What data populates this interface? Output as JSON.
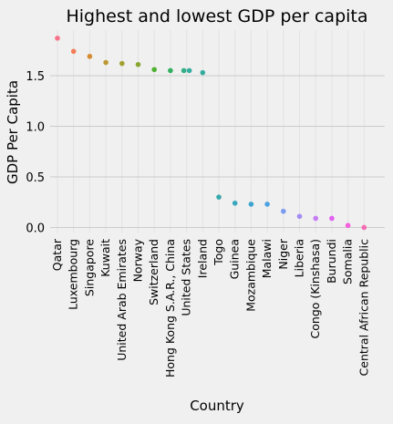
{
  "chart_data": {
    "type": "scatter",
    "title": "Highest and lowest GDP per capita",
    "xlabel": "Country",
    "ylabel": "GDP Per Capita",
    "ylim": [
      -0.05,
      1.95
    ],
    "yticks": [
      0.0,
      0.5,
      1.0,
      1.5
    ],
    "ytick_labels": [
      "0.0",
      "0.5",
      "1.0",
      "1.5"
    ],
    "grid": true,
    "legend": "none",
    "categories": [
      "Qatar",
      "Luxembourg",
      "Singapore",
      "Kuwait",
      "United Arab Emirates",
      "Norway",
      "Switzerland",
      "Hong Kong S.A.R., China",
      "United States",
      "Ireland",
      "Togo",
      "Guinea",
      "Mozambique",
      "Malawi",
      "Niger",
      "Liberia",
      "Congo (Kinshasa)",
      "Burundi",
      "Somalia",
      "Central African Republic"
    ],
    "points": [
      {
        "x": "Qatar",
        "y": 1.87,
        "color": "#f77189"
      },
      {
        "x": "Luxembourg",
        "y": 1.74,
        "color": "#f27c55"
      },
      {
        "x": "Singapore",
        "y": 1.69,
        "color": "#d58c32"
      },
      {
        "x": "Kuwait",
        "y": 1.63,
        "color": "#bb9832"
      },
      {
        "x": "United Arab Emirates",
        "y": 1.62,
        "color": "#a39f31"
      },
      {
        "x": "Norway",
        "y": 1.61,
        "color": "#89a631"
      },
      {
        "x": "Switzerland",
        "y": 1.56,
        "color": "#50b131"
      },
      {
        "x": "Hong Kong S.A.R., China",
        "y": 1.55,
        "color": "#33b05f"
      },
      {
        "x": "United States",
        "y": 1.55,
        "color": "#34ae89"
      },
      {
        "x": "United States",
        "y": 1.55,
        "color": "#35ac9e"
      },
      {
        "x": "Ireland",
        "y": 1.53,
        "color": "#36ab9f"
      },
      {
        "x": "Togo",
        "y": 0.3,
        "color": "#37a9ad"
      },
      {
        "x": "Guinea",
        "y": 0.24,
        "color": "#38a7bd"
      },
      {
        "x": "Mozambique",
        "y": 0.23,
        "color": "#3aa5d0"
      },
      {
        "x": "Malawi",
        "y": 0.23,
        "color": "#4ca1e2"
      },
      {
        "x": "Niger",
        "y": 0.16,
        "color": "#7b9bf3"
      },
      {
        "x": "Liberia",
        "y": 0.11,
        "color": "#a48cf4"
      },
      {
        "x": "Congo (Kinshasa)",
        "y": 0.09,
        "color": "#c77bf4"
      },
      {
        "x": "Burundi",
        "y": 0.09,
        "color": "#e35ff1"
      },
      {
        "x": "Somalia",
        "y": 0.02,
        "color": "#f561dd"
      },
      {
        "x": "Central African Republic",
        "y": 0.0,
        "color": "#f66bb3"
      }
    ],
    "style": {
      "background": "#f0f0f0",
      "grid_color": "#cbcbcb",
      "text_color": "#000000"
    }
  }
}
